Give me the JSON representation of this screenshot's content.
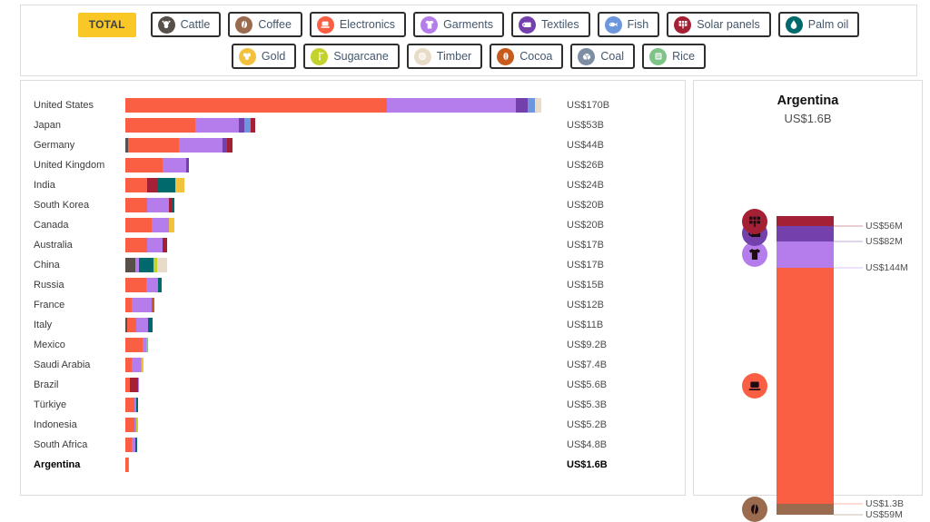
{
  "filters": {
    "total_label": "TOTAL",
    "row1": [
      {
        "key": "cattle",
        "label": "Cattle",
        "icon": "cattle-icon"
      },
      {
        "key": "coffee",
        "label": "Coffee",
        "icon": "coffee-icon"
      },
      {
        "key": "electronics",
        "label": "Electronics",
        "icon": "electronics-icon"
      },
      {
        "key": "garments",
        "label": "Garments",
        "icon": "garments-icon"
      },
      {
        "key": "textiles",
        "label": "Textiles",
        "icon": "textiles-icon"
      },
      {
        "key": "fish",
        "label": "Fish",
        "icon": "fish-icon"
      },
      {
        "key": "solar_panels",
        "label": "Solar panels",
        "icon": "solar-panels-icon"
      },
      {
        "key": "palm_oil",
        "label": "Palm oil",
        "icon": "palm-oil-icon"
      }
    ],
    "row2": [
      {
        "key": "gold",
        "label": "Gold",
        "icon": "gold-icon"
      },
      {
        "key": "sugarcane",
        "label": "Sugarcane",
        "icon": "sugarcane-icon"
      },
      {
        "key": "timber",
        "label": "Timber",
        "icon": "timber-icon"
      },
      {
        "key": "cocoa",
        "label": "Cocoa",
        "icon": "cocoa-icon"
      },
      {
        "key": "coal",
        "label": "Coal",
        "icon": "coal-icon"
      },
      {
        "key": "rice",
        "label": "Rice",
        "icon": "rice-icon"
      }
    ]
  },
  "colors": {
    "cattle": "#57504A",
    "coffee": "#9A6B4F",
    "electronics": "#FA5F43",
    "garments": "#B57CEC",
    "textiles": "#7340AC",
    "fish": "#6E96DC",
    "solar_panels": "#A32035",
    "palm_oil": "#00696B",
    "gold": "#F2C23E",
    "sugarcane": "#C4D22E",
    "timber": "#E8DCC8",
    "cocoa": "#C75B1E",
    "coal": "#7C8DA4",
    "rice": "#7EC488"
  },
  "chart_data": {
    "type": "bar",
    "orientation": "horizontal-stacked",
    "unit": "US$ billions",
    "max_total": 170,
    "rows": [
      {
        "country": "United States",
        "value_label": "US$170B",
        "total": 170,
        "bold": false,
        "segments": [
          {
            "c": "electronics",
            "v": 107
          },
          {
            "c": "garments",
            "v": 52.5
          },
          {
            "c": "textiles",
            "v": 5
          },
          {
            "c": "fish",
            "v": 3
          },
          {
            "c": "timber",
            "v": 2.5
          }
        ]
      },
      {
        "country": "Japan",
        "value_label": "US$53B",
        "total": 53,
        "bold": false,
        "segments": [
          {
            "c": "electronics",
            "v": 28.5
          },
          {
            "c": "garments",
            "v": 17.8
          },
          {
            "c": "textiles",
            "v": 2.1
          },
          {
            "c": "fish",
            "v": 2.5
          },
          {
            "c": "solar_panels",
            "v": 1.9
          }
        ]
      },
      {
        "country": "Germany",
        "value_label": "US$44B",
        "total": 44,
        "bold": false,
        "segments": [
          {
            "c": "cattle",
            "v": 1.2
          },
          {
            "c": "electronics",
            "v": 20.7
          },
          {
            "c": "garments",
            "v": 18
          },
          {
            "c": "textiles",
            "v": 1.6
          },
          {
            "c": "solar_panels",
            "v": 2.5
          }
        ]
      },
      {
        "country": "United Kingdom",
        "value_label": "US$26B",
        "total": 26,
        "bold": false,
        "segments": [
          {
            "c": "electronics",
            "v": 15.2
          },
          {
            "c": "garments",
            "v": 9.8
          },
          {
            "c": "textiles",
            "v": 1
          }
        ]
      },
      {
        "country": "India",
        "value_label": "US$24B",
        "total": 24,
        "bold": false,
        "segments": [
          {
            "c": "electronics",
            "v": 9
          },
          {
            "c": "solar_panels",
            "v": 4.1
          },
          {
            "c": "palm_oil",
            "v": 7.5
          },
          {
            "c": "gold",
            "v": 3.4
          }
        ]
      },
      {
        "country": "South Korea",
        "value_label": "US$20B",
        "total": 20,
        "bold": false,
        "segments": [
          {
            "c": "electronics",
            "v": 9
          },
          {
            "c": "garments",
            "v": 8.7
          },
          {
            "c": "solar_panels",
            "v": 1.2
          },
          {
            "c": "palm_oil",
            "v": 1.1
          }
        ]
      },
      {
        "country": "Canada",
        "value_label": "US$20B",
        "total": 20,
        "bold": false,
        "segments": [
          {
            "c": "electronics",
            "v": 10.9
          },
          {
            "c": "garments",
            "v": 6.9
          },
          {
            "c": "gold",
            "v": 2.2
          }
        ]
      },
      {
        "country": "Australia",
        "value_label": "US$17B",
        "total": 17,
        "bold": false,
        "segments": [
          {
            "c": "electronics",
            "v": 9
          },
          {
            "c": "garments",
            "v": 6.4
          },
          {
            "c": "solar_panels",
            "v": 1.6
          }
        ]
      },
      {
        "country": "China",
        "value_label": "US$17B",
        "total": 17,
        "bold": false,
        "segments": [
          {
            "c": "cattle",
            "v": 4
          },
          {
            "c": "garments",
            "v": 1.5
          },
          {
            "c": "palm_oil",
            "v": 6
          },
          {
            "c": "sugarcane",
            "v": 1.4
          },
          {
            "c": "timber",
            "v": 4.1
          }
        ]
      },
      {
        "country": "Russia",
        "value_label": "US$15B",
        "total": 15,
        "bold": false,
        "segments": [
          {
            "c": "electronics",
            "v": 8.5
          },
          {
            "c": "garments",
            "v": 5
          },
          {
            "c": "palm_oil",
            "v": 1.5
          }
        ]
      },
      {
        "country": "France",
        "value_label": "US$12B",
        "total": 12,
        "bold": false,
        "segments": [
          {
            "c": "electronics",
            "v": 2.7
          },
          {
            "c": "garments",
            "v": 8.1
          },
          {
            "c": "cocoa",
            "v": 1.2
          }
        ]
      },
      {
        "country": "Italy",
        "value_label": "US$11B",
        "total": 11,
        "bold": false,
        "segments": [
          {
            "c": "cattle",
            "v": 0.8
          },
          {
            "c": "electronics",
            "v": 3.6
          },
          {
            "c": "garments",
            "v": 4.8
          },
          {
            "c": "palm_oil",
            "v": 1.8
          }
        ]
      },
      {
        "country": "Mexico",
        "value_label": "US$9.2B",
        "total": 9.2,
        "bold": false,
        "segments": [
          {
            "c": "electronics",
            "v": 7.1
          },
          {
            "c": "garments",
            "v": 1.6
          },
          {
            "c": "rice",
            "v": 0.5
          }
        ]
      },
      {
        "country": "Saudi Arabia",
        "value_label": "US$7.4B",
        "total": 7.4,
        "bold": false,
        "segments": [
          {
            "c": "electronics",
            "v": 2.5
          },
          {
            "c": "garments",
            "v": 3.7
          },
          {
            "c": "rice",
            "v": 0.5
          },
          {
            "c": "gold",
            "v": 0.7
          }
        ]
      },
      {
        "country": "Brazil",
        "value_label": "US$5.6B",
        "total": 5.6,
        "bold": false,
        "segments": [
          {
            "c": "electronics",
            "v": 2
          },
          {
            "c": "solar_panels",
            "v": 3.3
          },
          {
            "c": "garments",
            "v": 0.3
          }
        ]
      },
      {
        "country": "Türkiye",
        "value_label": "US$5.3B",
        "total": 5.3,
        "bold": false,
        "segments": [
          {
            "c": "electronics",
            "v": 3.7
          },
          {
            "c": "garments",
            "v": 0.8
          },
          {
            "c": "palm_oil",
            "v": 0.8
          }
        ]
      },
      {
        "country": "Indonesia",
        "value_label": "US$5.2B",
        "total": 5.2,
        "bold": false,
        "segments": [
          {
            "c": "electronics",
            "v": 3.7
          },
          {
            "c": "garments",
            "v": 0.7
          },
          {
            "c": "sugarcane",
            "v": 0.8
          }
        ]
      },
      {
        "country": "South Africa",
        "value_label": "US$4.8B",
        "total": 4.8,
        "bold": false,
        "segments": [
          {
            "c": "electronics",
            "v": 2.6
          },
          {
            "c": "garments",
            "v": 1.5
          },
          {
            "c": "palm_oil",
            "v": 0.7
          }
        ]
      },
      {
        "country": "Argentina",
        "value_label": "US$1.6B",
        "total": 1.6,
        "bold": true,
        "segments": [
          {
            "c": "electronics",
            "v": 1.3
          },
          {
            "c": "garments",
            "v": 0.14
          },
          {
            "c": "textiles",
            "v": 0.08
          },
          {
            "c": "solar_panels",
            "v": 0.06
          },
          {
            "c": "coffee",
            "v": 0.06
          }
        ]
      }
    ]
  },
  "detail": {
    "country": "Argentina",
    "total": "US$1.6B",
    "segments": [
      {
        "c": "solar_panels",
        "icon": "solar-panels-icon",
        "label": "US$56M",
        "v": 56
      },
      {
        "c": "textiles",
        "icon": "textiles-icon",
        "label": "US$82M",
        "v": 82
      },
      {
        "c": "garments",
        "icon": "garments-icon",
        "label": "US$144M",
        "v": 144
      },
      {
        "c": "electronics",
        "icon": "electronics-icon",
        "label": "US$1.3B",
        "v": 1300
      },
      {
        "c": "coffee",
        "icon": "coffee-icon",
        "label": "US$59M",
        "v": 59
      }
    ]
  }
}
